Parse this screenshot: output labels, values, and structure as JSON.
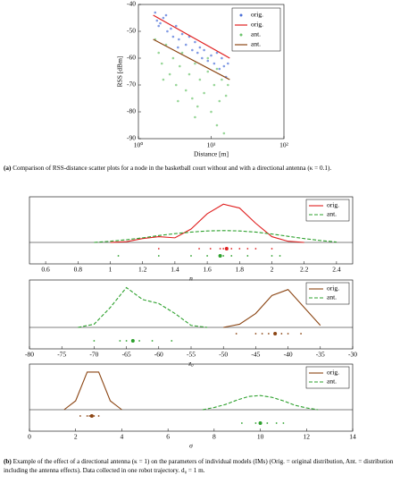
{
  "chart_data": [
    {
      "type": "scatter",
      "xlabel": "Distance [m]",
      "ylabel": "RSS [dBm]",
      "xscale": "log",
      "xlim": [
        1,
        100
      ],
      "xticks": [
        {
          "value": 1,
          "label": "10⁰"
        },
        {
          "value": 10,
          "label": "10¹"
        },
        {
          "value": 100,
          "label": "10²"
        }
      ],
      "ylim": [
        -90,
        -40
      ],
      "yticks": [
        -90,
        -80,
        -70,
        -60,
        -50,
        -40
      ],
      "legend": "upper right",
      "series": [
        {
          "name": "orig.",
          "mode": "markers",
          "color": "#4a6fd8",
          "x": [
            1.7,
            1.8,
            2,
            2.2,
            2.5,
            2.8,
            3,
            3.3,
            3.6,
            4,
            4.5,
            5,
            5.5,
            6,
            6.5,
            7,
            7.5,
            8,
            9,
            10,
            11,
            12,
            13,
            14,
            15,
            16,
            17,
            1.9,
            2.4,
            3.5
          ],
          "values": [
            -43,
            -46,
            -47,
            -45,
            -50,
            -49,
            -52,
            -48,
            -53,
            -51,
            -55,
            -52,
            -57,
            -54,
            -58,
            -56,
            -60,
            -57,
            -61,
            -59,
            -62,
            -58,
            -64,
            -60,
            -63,
            -67,
            -62,
            -48,
            -44,
            -56
          ]
        },
        {
          "name": "orig.",
          "mode": "line",
          "color": "#e02020",
          "x": [
            1.6,
            18
          ],
          "values": [
            -44,
            -60
          ]
        },
        {
          "name": "ant.",
          "mode": "markers",
          "color": "#6cc46c",
          "x": [
            1.7,
            1.9,
            2.1,
            2.4,
            2.7,
            3,
            3.3,
            3.7,
            4,
            4.5,
            5,
            5.5,
            6,
            6.5,
            7,
            8,
            9,
            10,
            11,
            12,
            13,
            14,
            15,
            16,
            17,
            2.2,
            3.5,
            6,
            9,
            12
          ],
          "values": [
            -53,
            -58,
            -62,
            -55,
            -66,
            -60,
            -70,
            -63,
            -58,
            -72,
            -66,
            -75,
            -62,
            -78,
            -68,
            -73,
            -65,
            -80,
            -70,
            -85,
            -76,
            -68,
            -88,
            -74,
            -70,
            -68,
            -76,
            -82,
            -60,
            -64
          ]
        },
        {
          "name": "ant.",
          "mode": "line",
          "color": "#8b4513",
          "x": [
            1.6,
            18
          ],
          "values": [
            -53,
            -68
          ]
        }
      ]
    },
    {
      "type": "density",
      "xlabel": "n",
      "xlim": [
        0.5,
        2.5
      ],
      "xticks": [
        0.6,
        0.8,
        1,
        1.2,
        1.4,
        1.6,
        1.8,
        2,
        2.2,
        2.4
      ],
      "ylim": [
        0,
        1.1
      ],
      "legend": "upper right",
      "x": [
        0.9,
        1.0,
        1.1,
        1.2,
        1.3,
        1.4,
        1.5,
        1.6,
        1.7,
        1.8,
        1.9,
        2.0,
        2.1,
        2.2,
        2.3,
        2.4
      ],
      "series": [
        {
          "name": "orig.",
          "color": "#e02020",
          "dash": "none",
          "values": [
            null,
            0,
            0.02,
            0.1,
            0.15,
            0.12,
            0.35,
            0.75,
            1.0,
            0.9,
            0.5,
            0.15,
            0.03,
            0,
            null,
            null
          ],
          "samples": [
            1.3,
            1.55,
            1.62,
            1.68,
            1.7,
            1.72,
            1.75,
            1.8,
            1.85,
            1.9,
            2.0
          ],
          "mean": 1.72
        },
        {
          "name": "ant.",
          "color": "#2ca02c",
          "dash": "4 2",
          "values": [
            0,
            0.03,
            0.07,
            0.12,
            0.18,
            0.23,
            0.27,
            0.3,
            0.31,
            0.3,
            0.27,
            0.22,
            0.16,
            0.1,
            0.05,
            0.01
          ],
          "samples": [
            1.05,
            1.3,
            1.5,
            1.6,
            1.7,
            1.75,
            1.85,
            2.0,
            2.05
          ],
          "mean": 1.68
        }
      ]
    },
    {
      "type": "density",
      "xlabel": "z₀",
      "xlim": [
        -80,
        -30
      ],
      "xticks": [
        -80,
        -75,
        -70,
        -65,
        -60,
        -55,
        -50,
        -45,
        -40,
        -35,
        -30
      ],
      "ylim": [
        0,
        1.1
      ],
      "legend": "upper right",
      "x": [
        -72.5,
        -70,
        -67.5,
        -65,
        -62.5,
        -60,
        -57.5,
        -55,
        -52.5,
        -50,
        -47.5,
        -45,
        -42.5,
        -40,
        -37.5,
        -35
      ],
      "series": [
        {
          "name": "orig.",
          "color": "#8b4513",
          "dash": "none",
          "values": [
            null,
            null,
            null,
            null,
            null,
            null,
            null,
            null,
            null,
            0,
            0.08,
            0.35,
            0.8,
            0.95,
            0.5,
            0.05
          ],
          "samples": [
            -48,
            -45,
            -44,
            -43,
            -42,
            -41,
            -40,
            -38
          ],
          "mean": -42
        },
        {
          "name": "ant.",
          "color": "#2ca02c",
          "dash": "4 2",
          "values": [
            0,
            0.08,
            0.5,
            1.0,
            0.7,
            0.6,
            0.35,
            0.05,
            0,
            null,
            null,
            null,
            null,
            null,
            null,
            null
          ],
          "samples": [
            -70,
            -66,
            -65,
            -64,
            -63,
            -61,
            -58
          ],
          "mean": -64
        }
      ]
    },
    {
      "type": "density",
      "xlabel": "σ",
      "xlim": [
        0,
        14
      ],
      "xticks": [
        0,
        2,
        4,
        6,
        8,
        10,
        12,
        14
      ],
      "ylim": [
        0,
        0.95
      ],
      "legend": "upper right",
      "x": [
        1.5,
        2,
        2.5,
        3,
        3.5,
        4,
        4.5,
        5,
        5.5,
        6,
        6.5,
        7,
        7.5,
        8,
        8.5,
        9,
        9.5,
        10,
        10.5,
        11,
        11.5,
        12,
        12.5
      ],
      "series": [
        {
          "name": "orig.",
          "color": "#8b4513",
          "dash": "none",
          "values": [
            0,
            0.2,
            0.85,
            0.85,
            0.2,
            0,
            null,
            null,
            null,
            null,
            null,
            null,
            null,
            null,
            null,
            null,
            null,
            null,
            null,
            null,
            null,
            null,
            null
          ],
          "samples": [
            2.2,
            2.5,
            2.6,
            2.7,
            2.8,
            3.0
          ],
          "mean": 2.7
        },
        {
          "name": "ant.",
          "color": "#2ca02c",
          "dash": "4 2",
          "values": [
            null,
            null,
            null,
            null,
            null,
            null,
            null,
            null,
            null,
            null,
            null,
            null,
            0,
            0.05,
            0.12,
            0.22,
            0.3,
            0.32,
            0.28,
            0.2,
            0.1,
            0.04,
            0
          ],
          "samples": [
            9.2,
            9.8,
            10.0,
            10.3,
            10.7,
            11.0
          ],
          "mean": 10
        }
      ]
    }
  ],
  "captions": [
    {
      "label": "(a)",
      "text": "Comparison of RSS-distance scatter plots for a node in the basketball court without and with a directional antenna (κ = 0.1)."
    },
    {
      "label": "(b)",
      "text": "Example of the effect of a directional antenna (κ = 1) on the parameters of individual models (IMs) (Orig. = original distribution, Ant. = distribution including the antenna effects). Data collected in one robot trajectory. d₀ = 1 m."
    }
  ]
}
